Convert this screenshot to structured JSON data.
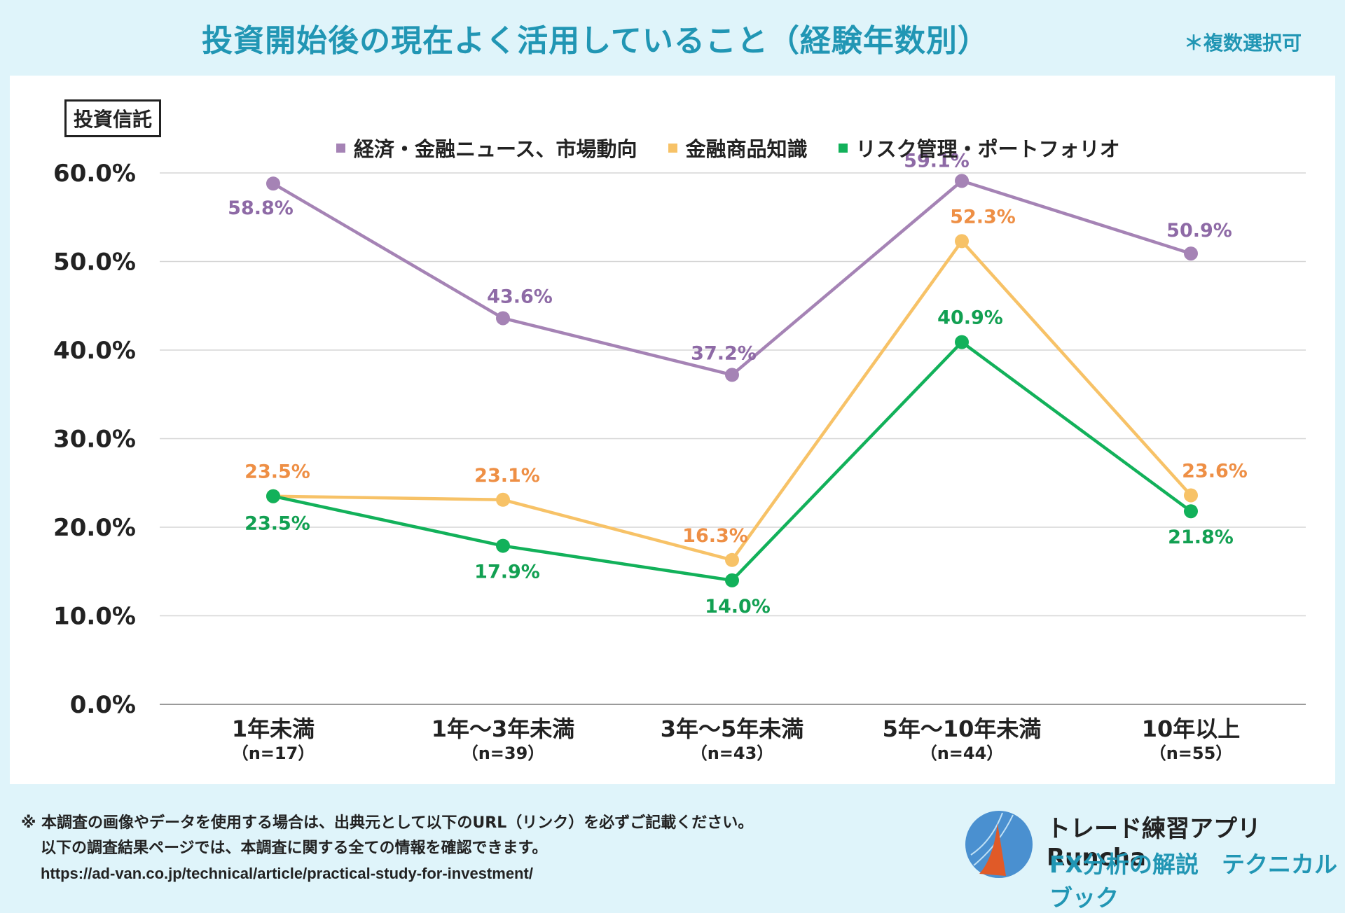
{
  "header": {
    "title": "投資開始後の現在よく活用していること（経験年数別）",
    "note": "＊複数選択可"
  },
  "category_label": "投資信託",
  "chart_data": {
    "type": "line",
    "title": "投資開始後の現在よく活用していること（経験年数別）",
    "categories": [
      "1年未満",
      "1年〜3年未満",
      "3年〜5年未満",
      "5年〜10年未満",
      "10年以上"
    ],
    "sample_sizes": [
      "（n=17）",
      "（n=39）",
      "（n=43）",
      "（n=44）",
      "（n=55）"
    ],
    "ylim": [
      0,
      60
    ],
    "yticks": [
      "0.0%",
      "10.0%",
      "20.0%",
      "30.0%",
      "40.0%",
      "50.0%",
      "60.0%"
    ],
    "series": [
      {
        "name": "経済・金融ニュース、市場動向",
        "color": "#a583b5",
        "label_color": "#8e6aa6",
        "values": [
          58.8,
          43.6,
          37.2,
          59.1,
          50.9
        ],
        "labels": [
          "58.8%",
          "43.6%",
          "37.2%",
          "59.1%",
          "50.9%"
        ]
      },
      {
        "name": "金融商品知識",
        "color": "#f7c267",
        "label_color": "#ee8f45",
        "values": [
          23.5,
          23.1,
          16.3,
          52.3,
          23.6
        ],
        "labels": [
          "23.5%",
          "23.1%",
          "16.3%",
          "52.3%",
          "23.6%"
        ]
      },
      {
        "name": "リスク管理・ポートフォリオ",
        "color": "#12b15a",
        "label_color": "#12a052",
        "values": [
          23.5,
          17.9,
          14.0,
          40.9,
          21.8
        ],
        "labels": [
          "23.5%",
          "17.9%",
          "14.0%",
          "40.9%",
          "21.8%"
        ]
      }
    ]
  },
  "footer": {
    "line1": "※ 本調査の画像やデータを使用する場合は、出典元として以下のURL（リンク）を必ずご記載ください。",
    "line2": "以下の調査結果ページでは、本調査に関する全ての情報を確認できます。",
    "url": "https://ad-van.co.jp/technical/article/practical-study-for-investment/"
  },
  "brand": {
    "name": "トレード練習アプリ　Runcha",
    "tagline": "FX分析の解説　テクニカルブック",
    "logo_colors": [
      "#4a90d0",
      "#e05a28"
    ]
  }
}
